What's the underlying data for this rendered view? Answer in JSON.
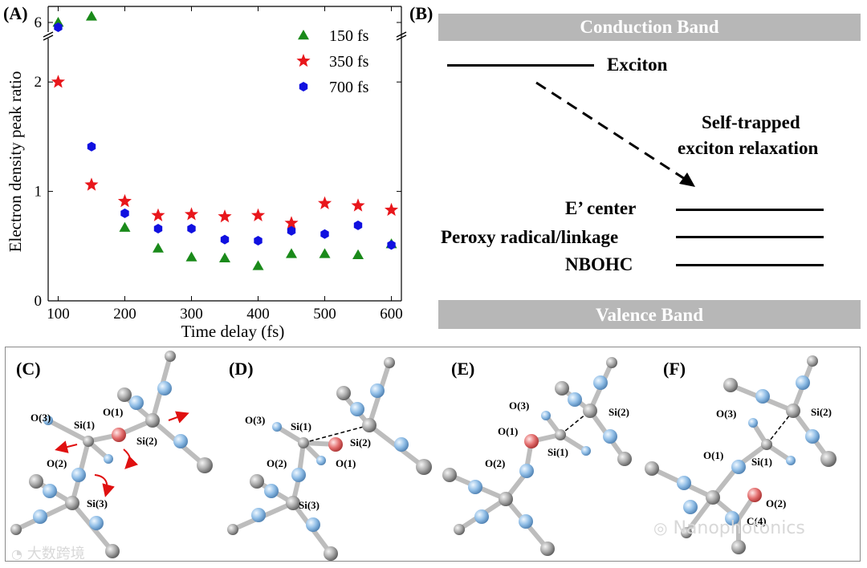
{
  "panels": {
    "a_label": "(A)",
    "b_label": "(B)",
    "c_label": "(C)",
    "d_label": "(D)",
    "e_label": "(E)",
    "f_label": "(F)"
  },
  "chart_data": {
    "type": "scatter",
    "xlabel": "Time delay (fs)",
    "ylabel": "Electron density peak ratio",
    "xlim": [
      85,
      615
    ],
    "ylim": [
      0,
      2.5
    ],
    "axis_break": "upper y-axis broken between 2 and 6",
    "x_ticks": [
      "100",
      "200",
      "300",
      "400",
      "500",
      "600"
    ],
    "y_ticks": [
      "0",
      "1",
      "2",
      "6"
    ],
    "legend_position": "top-right",
    "x": [
      100,
      150,
      200,
      250,
      300,
      350,
      400,
      450,
      500,
      550,
      600
    ],
    "series": [
      {
        "name": "150 fs",
        "marker": "triangle",
        "color": "#1a8a1a",
        "values": [
          6.0,
          2.6,
          0.67,
          0.48,
          0.4,
          0.39,
          0.32,
          0.43,
          0.43,
          0.42,
          0.52
        ]
      },
      {
        "name": "350 fs",
        "marker": "star",
        "color": "#e8161b",
        "values": [
          2.0,
          1.06,
          0.91,
          0.78,
          0.79,
          0.77,
          0.78,
          0.71,
          0.89,
          0.87,
          0.83
        ]
      },
      {
        "name": "700 fs",
        "marker": "hexagon",
        "color": "#1010e0",
        "values": [
          5.5,
          1.41,
          0.8,
          0.66,
          0.66,
          0.56,
          0.55,
          0.64,
          0.61,
          0.69,
          0.51
        ]
      }
    ]
  },
  "energy_diagram": {
    "conduction_band": "Conduction Band",
    "valence_band": "Valence Band",
    "exciton": "Exciton",
    "relaxation_line1": "Self-trapped",
    "relaxation_line2": "exciton relaxation",
    "e_center": "E’ center",
    "peroxy": "Peroxy radical/linkage",
    "nbohc": "NBOHC"
  },
  "molecules": {
    "c": {
      "o3": "O(3)",
      "si1": "Si(1)",
      "o1": "O(1)",
      "si2": "Si(2)",
      "o2": "O(2)",
      "si3": "Si(3)"
    },
    "d": {
      "o3": "O(3)",
      "si1": "Si(1)",
      "si2": "Si(2)",
      "o2": "O(2)",
      "o1": "O(1)",
      "si3": "Si(3)"
    },
    "e": {
      "o3": "O(3)",
      "si2": "Si(2)",
      "o1": "O(1)",
      "si1": "Si(1)",
      "o2": "O(2)"
    },
    "f": {
      "o3": "O(3)",
      "si2": "Si(2)",
      "o1": "O(1)",
      "si1": "Si(1)",
      "o2": "O(2)",
      "c4": "C(4)"
    }
  },
  "watermarks": {
    "left": "大数跨境",
    "right": "Nanophotonics"
  },
  "colors": {
    "band_gray": "#b7b7b7",
    "silicon": "#9a9a9a",
    "oxygen": "#8ab8e8",
    "highlight_oxygen": "#e06060",
    "arrow_red": "#e01010"
  }
}
